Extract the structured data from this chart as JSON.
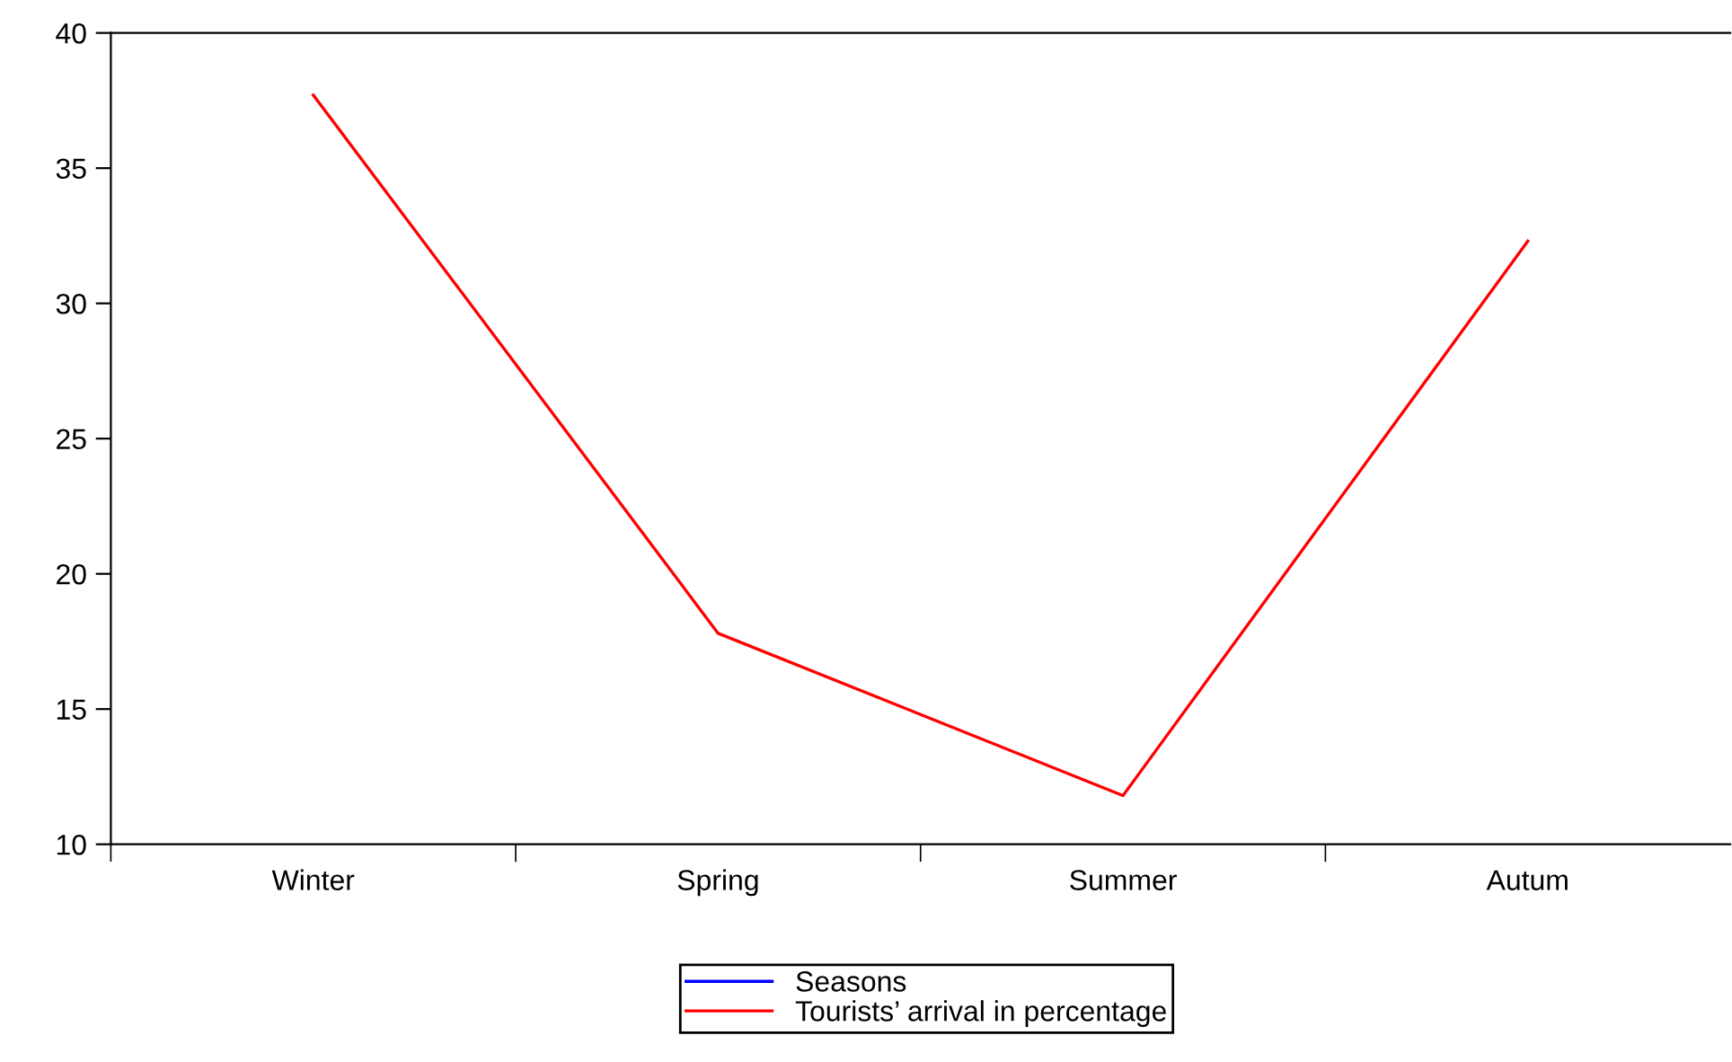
{
  "chart_data": {
    "type": "line",
    "categories": [
      "Winter",
      "Spring",
      "Summer",
      "Autum"
    ],
    "series": [
      {
        "name": "Seasons",
        "color": "#0000ff",
        "values": [
          null,
          null,
          null,
          null
        ]
      },
      {
        "name": "Tourists’ arrival in percentage",
        "color": "#ff0000",
        "values": [
          37.7,
          17.8,
          11.8,
          32.3
        ]
      }
    ],
    "ylim": [
      10,
      40
    ],
    "yticks": [
      10,
      15,
      20,
      25,
      30,
      35,
      40
    ],
    "grid": false,
    "legend": "bottom",
    "marker": "none",
    "line_style": "solid"
  }
}
